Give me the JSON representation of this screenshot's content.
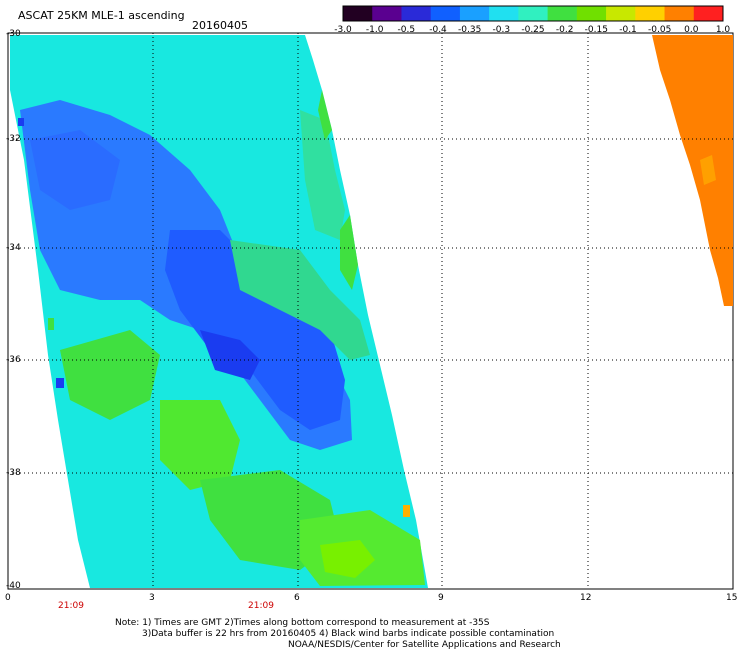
{
  "header": {
    "title": "ASCAT 25KM MLE-1 ascending",
    "date": "20160405"
  },
  "colorbar": {
    "labels": [
      "-3.0",
      "-1.0",
      "-0.5",
      "-0.4",
      "-0.35",
      "-0.3",
      "-0.25",
      "-0.2",
      "-0.15",
      "-0.1",
      "-0.05",
      "0.0",
      "1.0"
    ],
    "colors": [
      "#220022",
      "#5a0090",
      "#2a2ad8",
      "#1060ff",
      "#1aa0ff",
      "#20e0f0",
      "#30f0c0",
      "#40e040",
      "#70e000",
      "#c8e800",
      "#ffd000",
      "#ff8000",
      "#ff2020"
    ]
  },
  "map": {
    "lat_labels": [
      "-30",
      "-32",
      "-34",
      "-36",
      "-38",
      "-40"
    ],
    "lon_labels": [
      "0",
      "3",
      "6",
      "9",
      "12",
      "15"
    ],
    "times": [
      "21:09",
      "21:09"
    ],
    "colors": {
      "swath_cyan": "#18e8e0",
      "swath_blue": "#2a7aff",
      "deep_blue": "#2040ff",
      "green": "#40e040",
      "light_green": "#78f000",
      "orange": "#ff8000"
    }
  },
  "notes": [
    "Note: 1) Times are GMT 2)Times along bottom correspond to measurement at -35S",
    "3)Data buffer is 22 hrs from 20160405 4) Black wind barbs indicate possible contamination",
    "NOAA/NESDIS/Center for Satellite Applications and Research"
  ]
}
